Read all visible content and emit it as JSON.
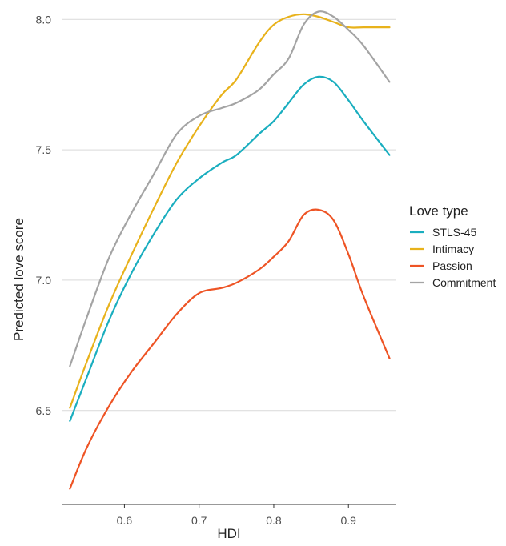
{
  "chart_data": {
    "type": "line",
    "xlabel": "HDI",
    "ylabel": "Predicted love score",
    "xlim": [
      0.517,
      0.963
    ],
    "ylim": [
      6.14,
      8.05
    ],
    "x_ticks": [
      "0.6",
      "0.7",
      "0.8",
      "0.9"
    ],
    "y_ticks": [
      "6.5",
      "7.0",
      "7.5",
      "8.0"
    ],
    "grid": "horizontal major",
    "legend": {
      "title": "Love type",
      "placement": "right"
    },
    "series": [
      {
        "name": "STLS-45",
        "color": "#1AAEBF",
        "x": [
          0.527,
          0.55,
          0.58,
          0.61,
          0.64,
          0.67,
          0.7,
          0.73,
          0.75,
          0.78,
          0.8,
          0.82,
          0.84,
          0.86,
          0.88,
          0.9,
          0.92,
          0.955
        ],
        "y": [
          6.46,
          6.63,
          6.85,
          7.03,
          7.18,
          7.31,
          7.39,
          7.45,
          7.48,
          7.56,
          7.61,
          7.68,
          7.75,
          7.78,
          7.76,
          7.69,
          7.61,
          7.48
        ]
      },
      {
        "name": "Intimacy",
        "color": "#E8B21B",
        "x": [
          0.527,
          0.55,
          0.58,
          0.61,
          0.64,
          0.67,
          0.7,
          0.73,
          0.75,
          0.78,
          0.8,
          0.82,
          0.84,
          0.86,
          0.88,
          0.9,
          0.92,
          0.955
        ],
        "y": [
          6.51,
          6.69,
          6.91,
          7.1,
          7.28,
          7.45,
          7.59,
          7.71,
          7.77,
          7.91,
          7.98,
          8.01,
          8.02,
          8.01,
          7.99,
          7.97,
          7.97,
          7.97
        ]
      },
      {
        "name": "Passion",
        "color": "#EE5425",
        "x": [
          0.527,
          0.55,
          0.58,
          0.61,
          0.64,
          0.67,
          0.7,
          0.73,
          0.75,
          0.78,
          0.8,
          0.82,
          0.84,
          0.86,
          0.88,
          0.9,
          0.92,
          0.955
        ],
        "y": [
          6.2,
          6.36,
          6.52,
          6.65,
          6.76,
          6.87,
          6.95,
          6.97,
          6.99,
          7.04,
          7.09,
          7.15,
          7.25,
          7.27,
          7.23,
          7.1,
          6.94,
          6.7
        ]
      },
      {
        "name": "Commitment",
        "color": "#A4A4A4",
        "x": [
          0.527,
          0.55,
          0.58,
          0.61,
          0.64,
          0.67,
          0.7,
          0.73,
          0.75,
          0.78,
          0.8,
          0.82,
          0.84,
          0.86,
          0.88,
          0.9,
          0.92,
          0.955
        ],
        "y": [
          6.67,
          6.86,
          7.09,
          7.26,
          7.41,
          7.56,
          7.63,
          7.66,
          7.68,
          7.73,
          7.79,
          7.85,
          7.98,
          8.03,
          8.01,
          7.96,
          7.9,
          7.76
        ]
      }
    ]
  }
}
